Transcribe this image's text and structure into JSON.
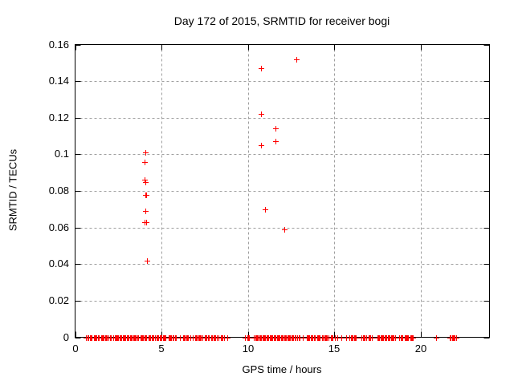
{
  "chart": {
    "title": "Day 172 of 2015, SRMTID for receiver bogi",
    "xlabel": "GPS time / hours",
    "ylabel": "SRMTID / TECUs",
    "colors": {
      "marker": "#ff0000",
      "grid": "#9e9e9e",
      "axis": "#000000",
      "background": "#ffffff",
      "text": "#000000"
    }
  },
  "chart_data": {
    "type": "scatter",
    "marker": "plus",
    "title": "Day 172 of 2015, SRMTID for receiver bogi",
    "xlabel": "GPS time / hours",
    "ylabel": "SRMTID / TECUs",
    "xlim": [
      0,
      24
    ],
    "ylim": [
      0,
      0.16
    ],
    "grid": true,
    "xticks": {
      "values": [
        0,
        5,
        10,
        15,
        20
      ],
      "labels": [
        "0",
        "5",
        "10",
        "15",
        "20"
      ]
    },
    "yticks": {
      "values": [
        0,
        0.02,
        0.04,
        0.06,
        0.08,
        0.1,
        0.12,
        0.14,
        0.16
      ],
      "labels": [
        "0",
        "0.02",
        "0.04",
        "0.06",
        "0.08",
        "0.1",
        "0.12",
        "0.14",
        "0.16"
      ]
    },
    "series": [
      {
        "name": "SRMTID",
        "color": "#ff0000",
        "points": [
          [
            4.08,
            0.101
          ],
          [
            4.01,
            0.096
          ],
          [
            4.0,
            0.086
          ],
          [
            4.08,
            0.085
          ],
          [
            4.06,
            0.078
          ],
          [
            4.1,
            0.078
          ],
          [
            4.05,
            0.069
          ],
          [
            4.0,
            0.063
          ],
          [
            4.1,
            0.063
          ],
          [
            4.17,
            0.042
          ],
          [
            10.79,
            0.147
          ],
          [
            10.79,
            0.122
          ],
          [
            10.79,
            0.105
          ],
          [
            11.02,
            0.07
          ],
          [
            11.61,
            0.114
          ],
          [
            11.61,
            0.107
          ],
          [
            12.11,
            0.059
          ],
          [
            12.8,
            0.152
          ]
        ]
      }
    ],
    "zero_band_segments": [
      [
        0.56,
        0.65
      ],
      [
        0.7,
        0.74
      ],
      [
        0.79,
        1.02
      ],
      [
        1.07,
        1.41
      ],
      [
        1.49,
        1.91
      ],
      [
        2.03,
        2.14
      ],
      [
        2.22,
        2.34
      ],
      [
        2.39,
        3.69
      ],
      [
        3.77,
        4.15
      ],
      [
        4.25,
        4.62
      ],
      [
        4.71,
        5.29
      ],
      [
        5.4,
        5.71
      ],
      [
        5.8,
        5.91
      ],
      [
        6.03,
        6.12
      ],
      [
        6.25,
        6.37
      ],
      [
        6.43,
        6.59
      ],
      [
        6.65,
        6.71
      ],
      [
        6.79,
        6.87
      ],
      [
        6.94,
        7.41
      ],
      [
        7.49,
        7.61
      ],
      [
        7.69,
        7.8
      ],
      [
        7.89,
        8.19
      ],
      [
        8.23,
        8.34
      ],
      [
        8.43,
        8.56
      ],
      [
        8.6,
        8.68
      ],
      [
        8.78,
        8.87
      ],
      [
        9.83,
        9.89
      ],
      [
        9.97,
        10.12
      ],
      [
        10.36,
        11.5
      ],
      [
        11.56,
        12.8
      ],
      [
        12.88,
        13.04
      ],
      [
        13.15,
        13.22
      ],
      [
        13.4,
        13.9
      ],
      [
        14.0,
        14.2
      ],
      [
        14.3,
        14.7
      ],
      [
        14.8,
        14.95
      ],
      [
        15.0,
        15.07
      ],
      [
        15.16,
        15.2
      ],
      [
        15.36,
        15.44
      ],
      [
        15.67,
        15.75
      ],
      [
        15.9,
        16.1
      ],
      [
        16.14,
        16.26
      ],
      [
        16.6,
        16.84
      ],
      [
        16.99,
        17.2
      ],
      [
        17.5,
        18.54
      ],
      [
        18.78,
        19.0
      ],
      [
        19.08,
        19.2
      ],
      [
        19.24,
        19.35
      ],
      [
        19.4,
        19.6
      ],
      [
        20.9,
        20.96
      ],
      [
        21.7,
        22.1
      ]
    ]
  }
}
